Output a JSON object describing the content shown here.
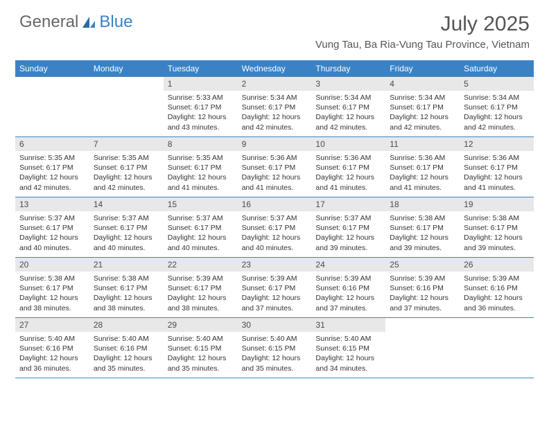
{
  "logo": {
    "text1": "General",
    "text2": "Blue"
  },
  "title": "July 2025",
  "location": "Vung Tau, Ba Ria-Vung Tau Province, Vietnam",
  "weekdays": [
    "Sunday",
    "Monday",
    "Tuesday",
    "Wednesday",
    "Thursday",
    "Friday",
    "Saturday"
  ],
  "colors": {
    "header_bar": "#3b82c4",
    "day_num_bg": "#e8e8e8",
    "text": "#333333",
    "title_text": "#555555"
  },
  "weeks": [
    [
      {
        "empty": true
      },
      {
        "empty": true
      },
      {
        "num": "1",
        "sunrise": "Sunrise: 5:33 AM",
        "sunset": "Sunset: 6:17 PM",
        "daylight1": "Daylight: 12 hours",
        "daylight2": "and 43 minutes."
      },
      {
        "num": "2",
        "sunrise": "Sunrise: 5:34 AM",
        "sunset": "Sunset: 6:17 PM",
        "daylight1": "Daylight: 12 hours",
        "daylight2": "and 42 minutes."
      },
      {
        "num": "3",
        "sunrise": "Sunrise: 5:34 AM",
        "sunset": "Sunset: 6:17 PM",
        "daylight1": "Daylight: 12 hours",
        "daylight2": "and 42 minutes."
      },
      {
        "num": "4",
        "sunrise": "Sunrise: 5:34 AM",
        "sunset": "Sunset: 6:17 PM",
        "daylight1": "Daylight: 12 hours",
        "daylight2": "and 42 minutes."
      },
      {
        "num": "5",
        "sunrise": "Sunrise: 5:34 AM",
        "sunset": "Sunset: 6:17 PM",
        "daylight1": "Daylight: 12 hours",
        "daylight2": "and 42 minutes."
      }
    ],
    [
      {
        "num": "6",
        "sunrise": "Sunrise: 5:35 AM",
        "sunset": "Sunset: 6:17 PM",
        "daylight1": "Daylight: 12 hours",
        "daylight2": "and 42 minutes."
      },
      {
        "num": "7",
        "sunrise": "Sunrise: 5:35 AM",
        "sunset": "Sunset: 6:17 PM",
        "daylight1": "Daylight: 12 hours",
        "daylight2": "and 42 minutes."
      },
      {
        "num": "8",
        "sunrise": "Sunrise: 5:35 AM",
        "sunset": "Sunset: 6:17 PM",
        "daylight1": "Daylight: 12 hours",
        "daylight2": "and 41 minutes."
      },
      {
        "num": "9",
        "sunrise": "Sunrise: 5:36 AM",
        "sunset": "Sunset: 6:17 PM",
        "daylight1": "Daylight: 12 hours",
        "daylight2": "and 41 minutes."
      },
      {
        "num": "10",
        "sunrise": "Sunrise: 5:36 AM",
        "sunset": "Sunset: 6:17 PM",
        "daylight1": "Daylight: 12 hours",
        "daylight2": "and 41 minutes."
      },
      {
        "num": "11",
        "sunrise": "Sunrise: 5:36 AM",
        "sunset": "Sunset: 6:17 PM",
        "daylight1": "Daylight: 12 hours",
        "daylight2": "and 41 minutes."
      },
      {
        "num": "12",
        "sunrise": "Sunrise: 5:36 AM",
        "sunset": "Sunset: 6:17 PM",
        "daylight1": "Daylight: 12 hours",
        "daylight2": "and 41 minutes."
      }
    ],
    [
      {
        "num": "13",
        "sunrise": "Sunrise: 5:37 AM",
        "sunset": "Sunset: 6:17 PM",
        "daylight1": "Daylight: 12 hours",
        "daylight2": "and 40 minutes."
      },
      {
        "num": "14",
        "sunrise": "Sunrise: 5:37 AM",
        "sunset": "Sunset: 6:17 PM",
        "daylight1": "Daylight: 12 hours",
        "daylight2": "and 40 minutes."
      },
      {
        "num": "15",
        "sunrise": "Sunrise: 5:37 AM",
        "sunset": "Sunset: 6:17 PM",
        "daylight1": "Daylight: 12 hours",
        "daylight2": "and 40 minutes."
      },
      {
        "num": "16",
        "sunrise": "Sunrise: 5:37 AM",
        "sunset": "Sunset: 6:17 PM",
        "daylight1": "Daylight: 12 hours",
        "daylight2": "and 40 minutes."
      },
      {
        "num": "17",
        "sunrise": "Sunrise: 5:37 AM",
        "sunset": "Sunset: 6:17 PM",
        "daylight1": "Daylight: 12 hours",
        "daylight2": "and 39 minutes."
      },
      {
        "num": "18",
        "sunrise": "Sunrise: 5:38 AM",
        "sunset": "Sunset: 6:17 PM",
        "daylight1": "Daylight: 12 hours",
        "daylight2": "and 39 minutes."
      },
      {
        "num": "19",
        "sunrise": "Sunrise: 5:38 AM",
        "sunset": "Sunset: 6:17 PM",
        "daylight1": "Daylight: 12 hours",
        "daylight2": "and 39 minutes."
      }
    ],
    [
      {
        "num": "20",
        "sunrise": "Sunrise: 5:38 AM",
        "sunset": "Sunset: 6:17 PM",
        "daylight1": "Daylight: 12 hours",
        "daylight2": "and 38 minutes."
      },
      {
        "num": "21",
        "sunrise": "Sunrise: 5:38 AM",
        "sunset": "Sunset: 6:17 PM",
        "daylight1": "Daylight: 12 hours",
        "daylight2": "and 38 minutes."
      },
      {
        "num": "22",
        "sunrise": "Sunrise: 5:39 AM",
        "sunset": "Sunset: 6:17 PM",
        "daylight1": "Daylight: 12 hours",
        "daylight2": "and 38 minutes."
      },
      {
        "num": "23",
        "sunrise": "Sunrise: 5:39 AM",
        "sunset": "Sunset: 6:17 PM",
        "daylight1": "Daylight: 12 hours",
        "daylight2": "and 37 minutes."
      },
      {
        "num": "24",
        "sunrise": "Sunrise: 5:39 AM",
        "sunset": "Sunset: 6:16 PM",
        "daylight1": "Daylight: 12 hours",
        "daylight2": "and 37 minutes."
      },
      {
        "num": "25",
        "sunrise": "Sunrise: 5:39 AM",
        "sunset": "Sunset: 6:16 PM",
        "daylight1": "Daylight: 12 hours",
        "daylight2": "and 37 minutes."
      },
      {
        "num": "26",
        "sunrise": "Sunrise: 5:39 AM",
        "sunset": "Sunset: 6:16 PM",
        "daylight1": "Daylight: 12 hours",
        "daylight2": "and 36 minutes."
      }
    ],
    [
      {
        "num": "27",
        "sunrise": "Sunrise: 5:40 AM",
        "sunset": "Sunset: 6:16 PM",
        "daylight1": "Daylight: 12 hours",
        "daylight2": "and 36 minutes."
      },
      {
        "num": "28",
        "sunrise": "Sunrise: 5:40 AM",
        "sunset": "Sunset: 6:16 PM",
        "daylight1": "Daylight: 12 hours",
        "daylight2": "and 35 minutes."
      },
      {
        "num": "29",
        "sunrise": "Sunrise: 5:40 AM",
        "sunset": "Sunset: 6:15 PM",
        "daylight1": "Daylight: 12 hours",
        "daylight2": "and 35 minutes."
      },
      {
        "num": "30",
        "sunrise": "Sunrise: 5:40 AM",
        "sunset": "Sunset: 6:15 PM",
        "daylight1": "Daylight: 12 hours",
        "daylight2": "and 35 minutes."
      },
      {
        "num": "31",
        "sunrise": "Sunrise: 5:40 AM",
        "sunset": "Sunset: 6:15 PM",
        "daylight1": "Daylight: 12 hours",
        "daylight2": "and 34 minutes."
      },
      {
        "empty": true
      },
      {
        "empty": true
      }
    ]
  ]
}
